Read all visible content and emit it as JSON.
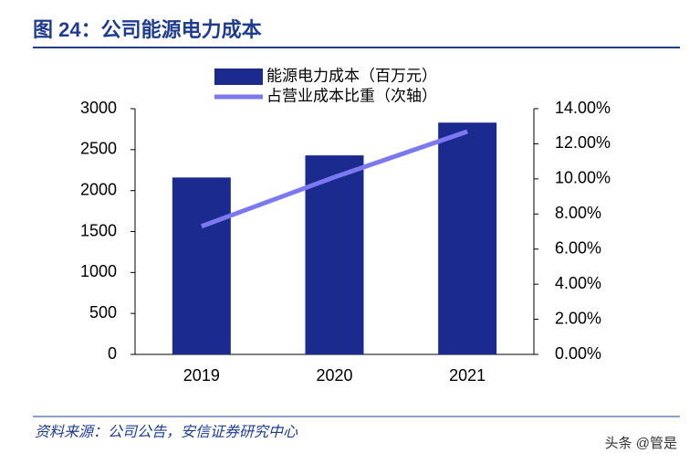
{
  "chart_data": {
    "type": "bar",
    "title": "图 24：公司能源电力成本",
    "categories": [
      "2019",
      "2020",
      "2021"
    ],
    "series": [
      {
        "name": "能源电力成本（百万元）",
        "type": "bar",
        "color": "#1b2a8f",
        "values": [
          2160,
          2430,
          2830
        ]
      },
      {
        "name": "占营业成本比重（次轴）",
        "type": "line",
        "axis": "y2",
        "color": "#7b78f0",
        "values": [
          7.3,
          10.1,
          12.7
        ]
      }
    ],
    "ylim": [
      0,
      3000
    ],
    "yticks": [
      0,
      500,
      1000,
      1500,
      2000,
      2500,
      3000
    ],
    "y2lim": [
      0,
      14
    ],
    "y2ticks": [
      {
        "value": 0,
        "label": "0.00%"
      },
      {
        "value": 2,
        "label": "2.00%"
      },
      {
        "value": 4,
        "label": "4.00%"
      },
      {
        "value": 6,
        "label": "6.00%"
      },
      {
        "value": 8,
        "label": "8.00%"
      },
      {
        "value": 10,
        "label": "10.00%"
      },
      {
        "value": 12,
        "label": "12.00%"
      },
      {
        "value": 14,
        "label": "14.00%"
      }
    ]
  },
  "source": "资料来源：公司公告，安信证券研究中心",
  "watermark": "头条 @管是"
}
